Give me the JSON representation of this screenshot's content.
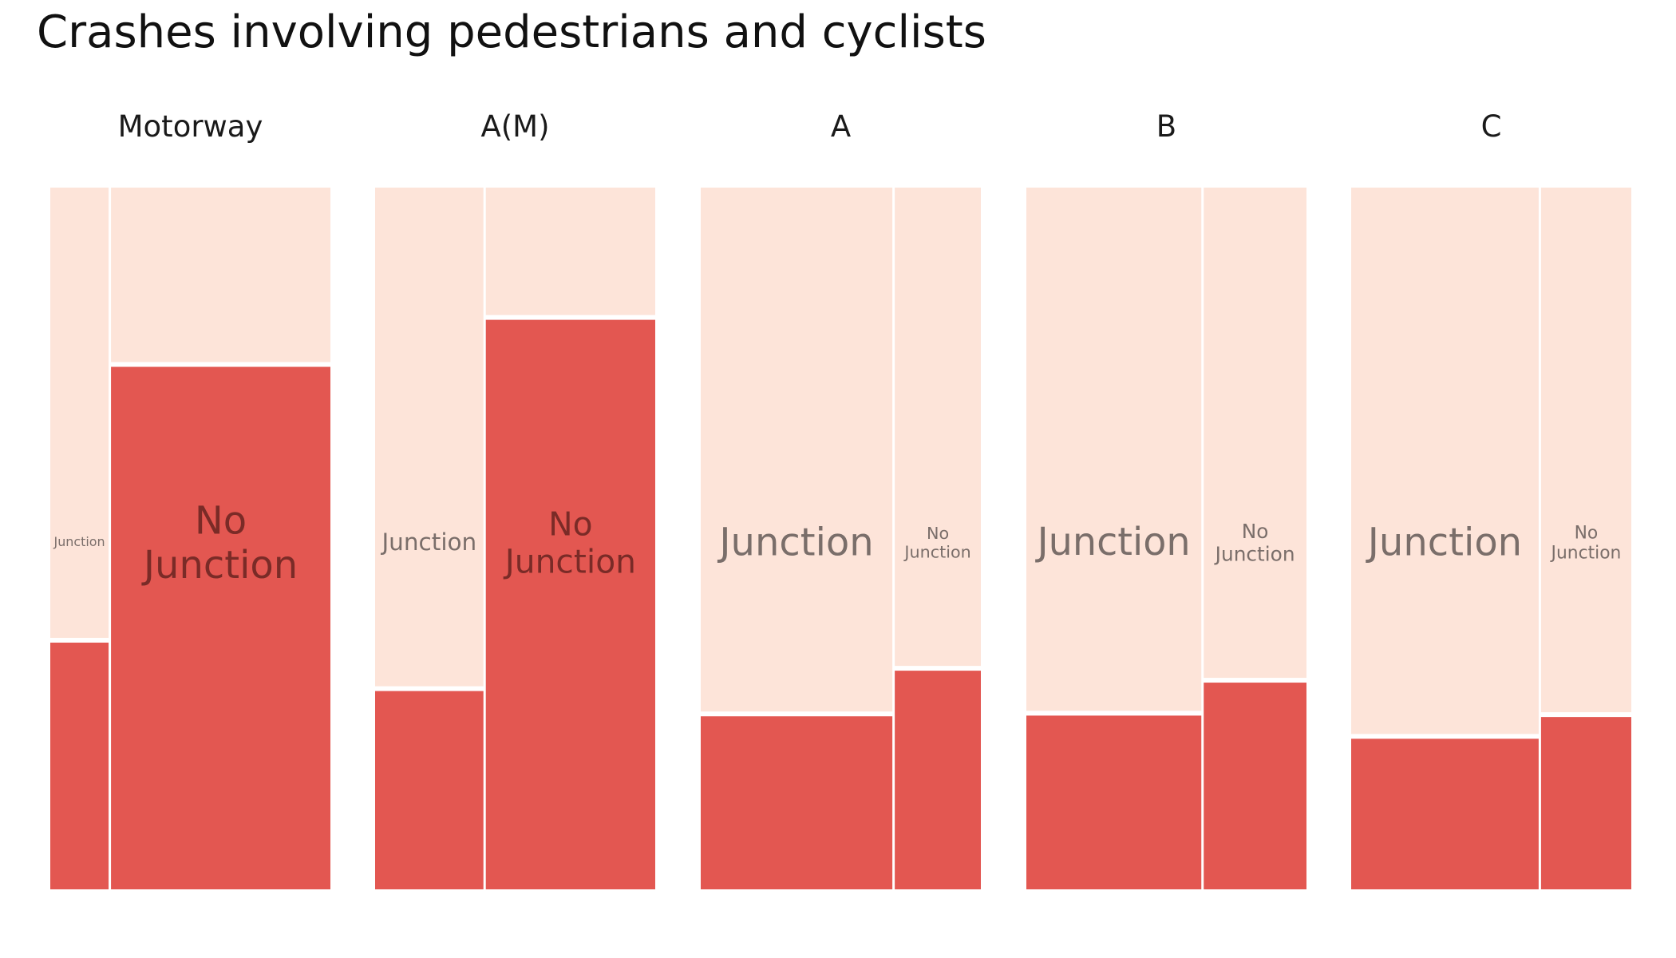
{
  "title": "Crashes involving pedestrians and cyclists",
  "colors": {
    "involved": "#e35751",
    "not_involved": "#fde4d9",
    "label_on_light": "#7a6e6a",
    "label_on_dark": "#7a2b27",
    "background": "#ffffff"
  },
  "chart_data": {
    "type": "mosaic",
    "title": "Crashes involving pedestrians and cyclists",
    "panels": [
      {
        "name": "Motorway",
        "categories": [
          {
            "label": "Junction",
            "width_share": 0.21,
            "pedestrian_cyclist_share": 0.355
          },
          {
            "label": "No Junction",
            "width_share": 0.79,
            "pedestrian_cyclist_share": 0.748
          }
        ]
      },
      {
        "name": "A(M)",
        "categories": [
          {
            "label": "Junction",
            "width_share": 0.39,
            "pedestrian_cyclist_share": 0.286
          },
          {
            "label": "No Junction",
            "width_share": 0.61,
            "pedestrian_cyclist_share": 0.815
          }
        ]
      },
      {
        "name": "A",
        "categories": [
          {
            "label": "Junction",
            "width_share": 0.69,
            "pedestrian_cyclist_share": 0.25
          },
          {
            "label": "No Junction",
            "width_share": 0.31,
            "pedestrian_cyclist_share": 0.315
          }
        ]
      },
      {
        "name": "B",
        "categories": [
          {
            "label": "Junction",
            "width_share": 0.63,
            "pedestrian_cyclist_share": 0.251
          },
          {
            "label": "No Junction",
            "width_share": 0.37,
            "pedestrian_cyclist_share": 0.298
          }
        ]
      },
      {
        "name": "C",
        "categories": [
          {
            "label": "Junction",
            "width_share": 0.675,
            "pedestrian_cyclist_share": 0.218
          },
          {
            "label": "No Junction",
            "width_share": 0.325,
            "pedestrian_cyclist_share": 0.249
          }
        ]
      }
    ]
  }
}
